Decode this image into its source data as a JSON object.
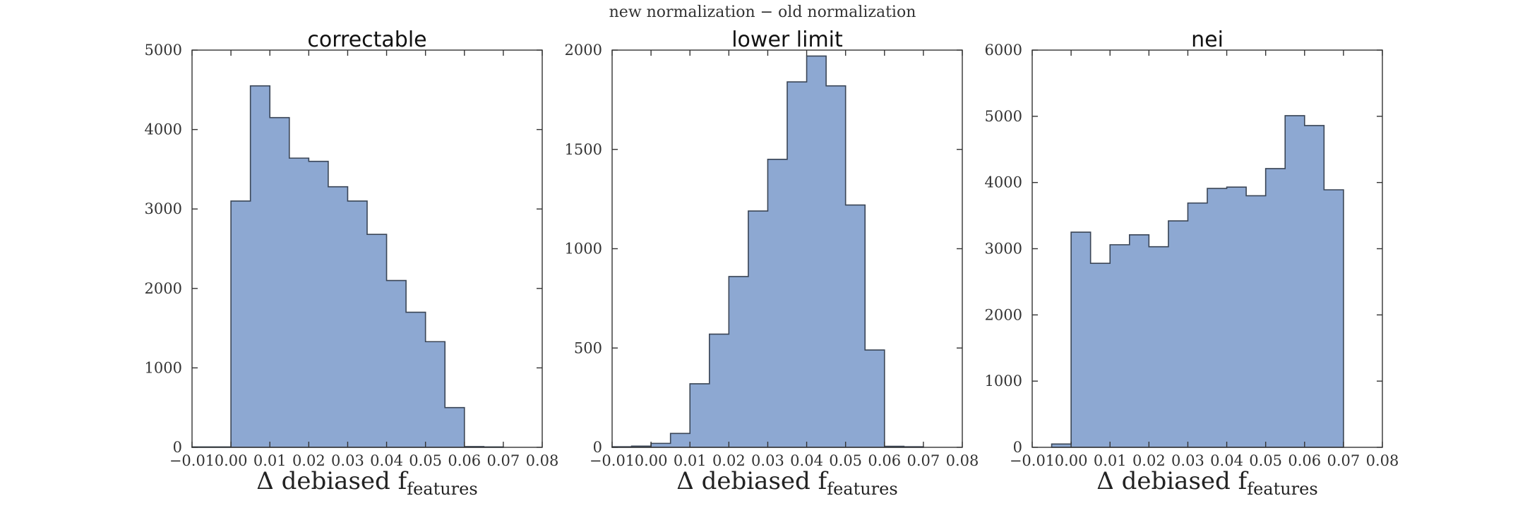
{
  "figure": {
    "suptitle": "new normalization − old normalization"
  },
  "chart_data": [
    {
      "type": "bar",
      "title": "correctable",
      "xlabel": "Δ debiased f",
      "xlabel_subscript": "features",
      "ylabel": "",
      "xlim": [
        -0.01,
        0.08
      ],
      "ylim": [
        0,
        5000
      ],
      "xticks": [
        "−0.01",
        "0.00",
        "0.01",
        "0.02",
        "0.03",
        "0.04",
        "0.05",
        "0.06",
        "0.07",
        "0.08"
      ],
      "yticks": [
        "0",
        "1000",
        "2000",
        "3000",
        "4000",
        "5000"
      ],
      "bin_edges": [
        -0.01,
        -0.005,
        0.0,
        0.005,
        0.01,
        0.015,
        0.02,
        0.025,
        0.03,
        0.035,
        0.04,
        0.045,
        0.05,
        0.055,
        0.06,
        0.065,
        0.07
      ],
      "values": [
        5,
        5,
        3100,
        4550,
        4150,
        3640,
        3600,
        3280,
        3100,
        2680,
        2100,
        1700,
        1330,
        500,
        10,
        5
      ],
      "color": "#8da8d2",
      "grid": false
    },
    {
      "type": "bar",
      "title": "lower limit",
      "xlabel": "Δ debiased f",
      "xlabel_subscript": "features",
      "ylabel": "",
      "xlim": [
        -0.01,
        0.08
      ],
      "ylim": [
        0,
        2000
      ],
      "xticks": [
        "−0.01",
        "0.00",
        "0.01",
        "0.02",
        "0.03",
        "0.04",
        "0.05",
        "0.06",
        "0.07",
        "0.08"
      ],
      "yticks": [
        "0",
        "500",
        "1000",
        "1500",
        "2000"
      ],
      "bin_edges": [
        -0.01,
        -0.005,
        0.0,
        0.005,
        0.01,
        0.015,
        0.02,
        0.025,
        0.03,
        0.035,
        0.04,
        0.045,
        0.05,
        0.055,
        0.06,
        0.065,
        0.07
      ],
      "values": [
        3,
        6,
        20,
        70,
        320,
        570,
        860,
        1190,
        1450,
        1840,
        1970,
        1820,
        1220,
        490,
        5,
        3
      ],
      "color": "#8da8d2",
      "grid": false
    },
    {
      "type": "bar",
      "title": "nei",
      "xlabel": "Δ debiased f",
      "xlabel_subscript": "features",
      "ylabel": "",
      "xlim": [
        -0.01,
        0.08
      ],
      "ylim": [
        0,
        6000
      ],
      "xticks": [
        "−0.01",
        "0.00",
        "0.01",
        "0.02",
        "0.03",
        "0.04",
        "0.05",
        "0.06",
        "0.07",
        "0.08"
      ],
      "yticks": [
        "0",
        "1000",
        "2000",
        "3000",
        "4000",
        "5000",
        "6000"
      ],
      "bin_edges": [
        -0.005,
        0.0,
        0.005,
        0.01,
        0.015,
        0.02,
        0.025,
        0.03,
        0.035,
        0.04,
        0.045,
        0.05,
        0.055,
        0.06,
        0.065,
        0.07
      ],
      "values": [
        50,
        3250,
        2780,
        3060,
        3210,
        3030,
        3420,
        3690,
        3910,
        3930,
        3800,
        4210,
        5010,
        4860,
        3890
      ],
      "color": "#8da8d2",
      "grid": false
    }
  ]
}
